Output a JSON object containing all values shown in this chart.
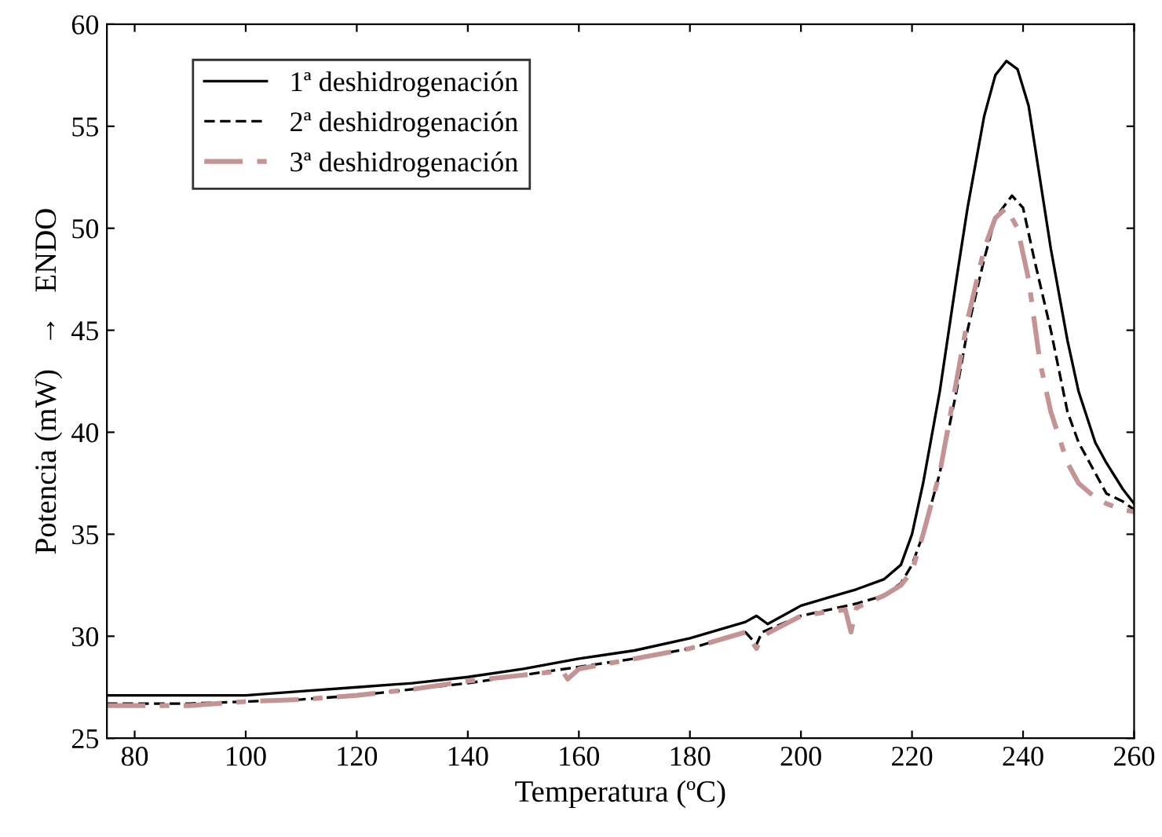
{
  "chart_data": {
    "type": "line",
    "xlabel": "Temperatura (ºC)",
    "ylabel": "Potencia (mW)   →   ENDO",
    "xlim": [
      75,
      260
    ],
    "xticks": [
      80,
      100,
      120,
      140,
      160,
      180,
      200,
      220,
      240,
      260
    ],
    "ylim": [
      25,
      60
    ],
    "yticks": [
      25,
      30,
      35,
      40,
      45,
      50,
      55,
      60
    ],
    "legend": "top left",
    "grid": false,
    "series": [
      {
        "name": "1ª deshidrogenación",
        "color": "#000000",
        "line_style": "solid",
        "x": [
          75,
          90,
          100,
          110,
          120,
          130,
          140,
          150,
          160,
          170,
          180,
          190,
          192,
          194,
          200,
          205,
          210,
          215,
          218,
          220,
          222,
          225,
          228,
          230,
          233,
          235,
          237,
          239,
          241,
          243,
          245,
          248,
          250,
          253,
          255,
          258,
          260
        ],
        "values": [
          27.1,
          27.1,
          27.1,
          27.3,
          27.5,
          27.7,
          28.0,
          28.4,
          28.9,
          29.3,
          29.9,
          30.7,
          31.0,
          30.6,
          31.5,
          31.9,
          32.3,
          32.8,
          33.5,
          35.0,
          37.5,
          42.0,
          47.5,
          51.0,
          55.5,
          57.5,
          58.2,
          57.8,
          56.0,
          52.5,
          49.0,
          44.5,
          42.0,
          39.5,
          38.5,
          37.2,
          36.5
        ]
      },
      {
        "name": "2ª deshidrogenación",
        "color": "#000000",
        "line_style": "dashed",
        "x": [
          75,
          90,
          100,
          110,
          120,
          130,
          140,
          150,
          160,
          170,
          180,
          190,
          192,
          193,
          200,
          205,
          210,
          215,
          218,
          220,
          222,
          225,
          228,
          230,
          233,
          235,
          238,
          240,
          242,
          245,
          248,
          250,
          253,
          255,
          258,
          260
        ],
        "values": [
          26.7,
          26.7,
          26.8,
          26.9,
          27.1,
          27.4,
          27.7,
          28.1,
          28.5,
          28.9,
          29.4,
          30.2,
          29.6,
          30.2,
          31.0,
          31.3,
          31.6,
          32.0,
          32.6,
          33.5,
          35.0,
          38.0,
          42.0,
          45.0,
          48.5,
          50.5,
          51.6,
          51.0,
          48.5,
          45.0,
          41.0,
          39.5,
          38.0,
          37.0,
          36.6,
          36.2
        ]
      },
      {
        "name": "3ª deshidrogenación",
        "color": "#c49494",
        "line_style": "dashdot",
        "x": [
          75,
          90,
          100,
          110,
          120,
          130,
          140,
          150,
          157,
          158,
          160,
          170,
          180,
          190,
          192,
          193,
          200,
          205,
          208,
          209,
          210,
          215,
          218,
          220,
          222,
          225,
          228,
          230,
          233,
          235,
          237,
          239,
          241,
          243,
          245,
          248,
          250,
          253,
          255,
          258,
          260
        ],
        "values": [
          26.6,
          26.6,
          26.8,
          26.9,
          27.1,
          27.4,
          27.8,
          28.1,
          28.3,
          27.9,
          28.4,
          28.9,
          29.4,
          30.2,
          29.4,
          30.0,
          31.0,
          31.2,
          31.3,
          30.2,
          31.4,
          32.0,
          32.5,
          33.2,
          35.0,
          38.0,
          42.5,
          45.5,
          49.0,
          50.5,
          51.0,
          50.0,
          47.5,
          43.5,
          41.0,
          38.5,
          37.5,
          36.8,
          36.5,
          36.2,
          36.1
        ]
      }
    ]
  }
}
